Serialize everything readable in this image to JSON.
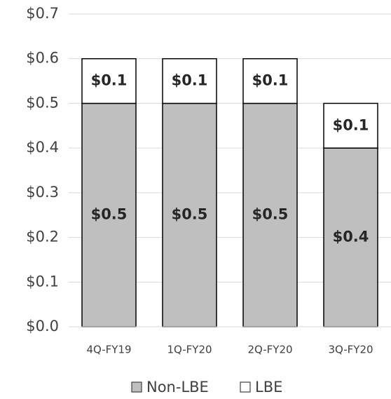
{
  "chart_data": {
    "type": "bar",
    "stacked": true,
    "categories": [
      "4Q-FY19",
      "1Q-FY20",
      "2Q-FY20",
      "3Q-FY20"
    ],
    "series": [
      {
        "name": "Non-LBE",
        "values": [
          0.5,
          0.5,
          0.5,
          0.4
        ],
        "labels": [
          "$0.5",
          "$0.5",
          "$0.5",
          "$0.4"
        ],
        "color": "#bfbfbf"
      },
      {
        "name": "LBE",
        "values": [
          0.1,
          0.1,
          0.1,
          0.1
        ],
        "labels": [
          "$0.1",
          "$0.1",
          "$0.1",
          "$0.1"
        ],
        "color": "#ffffff"
      }
    ],
    "ylim": [
      0,
      0.7
    ],
    "yticks": [
      0,
      0.1,
      0.2,
      0.3,
      0.4,
      0.5,
      0.6,
      0.7
    ],
    "ytick_labels": [
      "$0.0",
      "$0.1",
      "$0.2",
      "$0.3",
      "$0.4",
      "$0.5",
      "$0.6",
      "$0.7"
    ],
    "title": "",
    "xlabel": "",
    "ylabel": "",
    "grid": true,
    "legend_position": "bottom",
    "gridline_color": "#d9d9d9",
    "bar_border_color": "#000000"
  }
}
